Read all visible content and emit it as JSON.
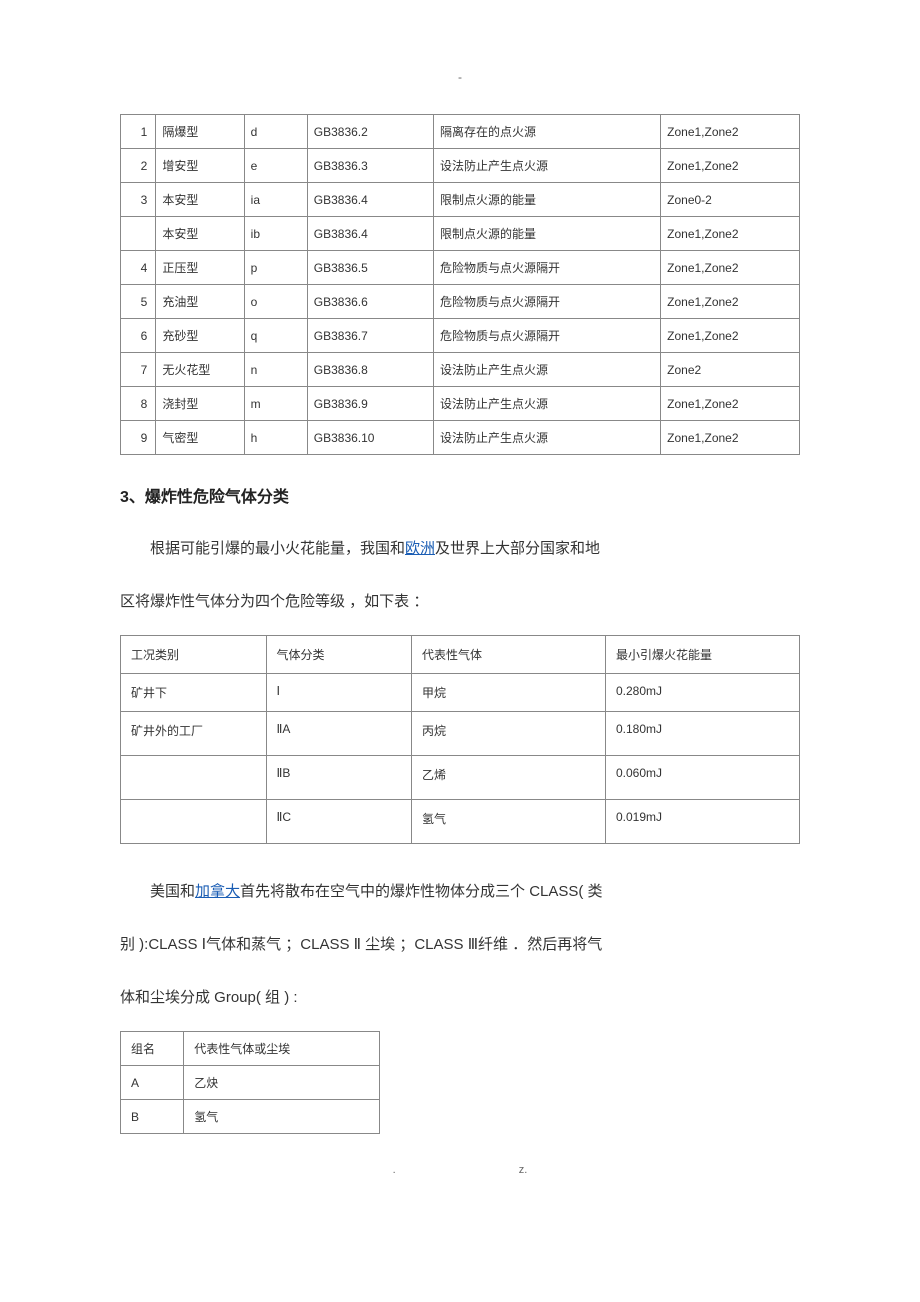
{
  "topdot": "-",
  "table1": {
    "rows": [
      {
        "n": "1",
        "type": "隔爆型",
        "code": "d",
        "std": "GB3836.2",
        "desc": "隔离存在的点火源",
        "zone": "Zone1,Zone2"
      },
      {
        "n": "2",
        "type": "增安型",
        "code": "e",
        "std": "GB3836.3",
        "desc": "设法防止产生点火源",
        "zone": "Zone1,Zone2"
      },
      {
        "n": "3",
        "type": "本安型",
        "code": "ia",
        "std": "GB3836.4",
        "desc": "限制点火源的能量",
        "zone": "Zone0-2"
      },
      {
        "n": "",
        "type": "本安型",
        "code": "ib",
        "std": "GB3836.4",
        "desc": "限制点火源的能量",
        "zone": "Zone1,Zone2"
      },
      {
        "n": "4",
        "type": "正压型",
        "code": "p",
        "std": "GB3836.5",
        "desc": "危险物质与点火源隔开",
        "zone": "Zone1,Zone2"
      },
      {
        "n": "5",
        "type": "充油型",
        "code": "o",
        "std": "GB3836.6",
        "desc": "危险物质与点火源隔开",
        "zone": "Zone1,Zone2"
      },
      {
        "n": "6",
        "type": "充砂型",
        "code": "q",
        "std": "GB3836.7",
        "desc": "危险物质与点火源隔开",
        "zone": "Zone1,Zone2"
      },
      {
        "n": "7",
        "type": "无火花型",
        "code": "n",
        "std": "GB3836.8",
        "desc": "设法防止产生点火源",
        "zone": "Zone2"
      },
      {
        "n": "8",
        "type": "浇封型",
        "code": "m",
        "std": "GB3836.9",
        "desc": "设法防止产生点火源",
        "zone": "Zone1,Zone2"
      },
      {
        "n": "9",
        "type": "气密型",
        "code": "h",
        "std": "GB3836.10",
        "desc": "设法防止产生点火源",
        "zone": "Zone1,Zone2"
      }
    ]
  },
  "heading1": "3、爆炸性危险气体分类",
  "para1_a": "根据可能引爆的最小火花能量，我国和",
  "para1_link": "欧洲",
  "para1_b": "及世界上大部分国家和地",
  "para1_c": "区将爆炸性气体分为四个危险等级 ，如下表 ：",
  "table2": {
    "header": {
      "a": "工况类别",
      "b": "气体分类",
      "c": "代表性气体",
      "d": "最小引爆火花能量"
    },
    "rows": [
      {
        "a": "矿井下",
        "b": "Ⅰ",
        "c": "甲烷",
        "d": "0.280mJ",
        "tall": false
      },
      {
        "a": "矿井外的工厂",
        "b": "ⅡA",
        "c": "丙烷",
        "d": "0.180mJ",
        "tall": true
      },
      {
        "a": "",
        "b": "ⅡB",
        "c": "乙烯",
        "d": "0.060mJ",
        "tall": true
      },
      {
        "a": "",
        "b": "ⅡC",
        "c": "氢气",
        "d": "0.019mJ",
        "tall": true
      }
    ]
  },
  "para2_a": "美国和",
  "para2_link": "加拿大",
  "para2_b": "首先将散布在空气中的爆炸性物体分成三个 CLASS( 类",
  "para2_c": "别 ):CLASS Ⅰ气体和蒸气 ；CLASS Ⅱ 尘埃 ；CLASS Ⅲ纤维 ．然后再将气",
  "para2_d": "体和尘埃分成 Group( 组 ) :",
  "table3": {
    "header": {
      "a": "组名",
      "b": "代表性气体或尘埃"
    },
    "rows": [
      {
        "a": "A",
        "b": "乙炔"
      },
      {
        "a": "B",
        "b": "氢气"
      }
    ]
  },
  "footer": {
    "left": ".",
    "right": "z."
  }
}
